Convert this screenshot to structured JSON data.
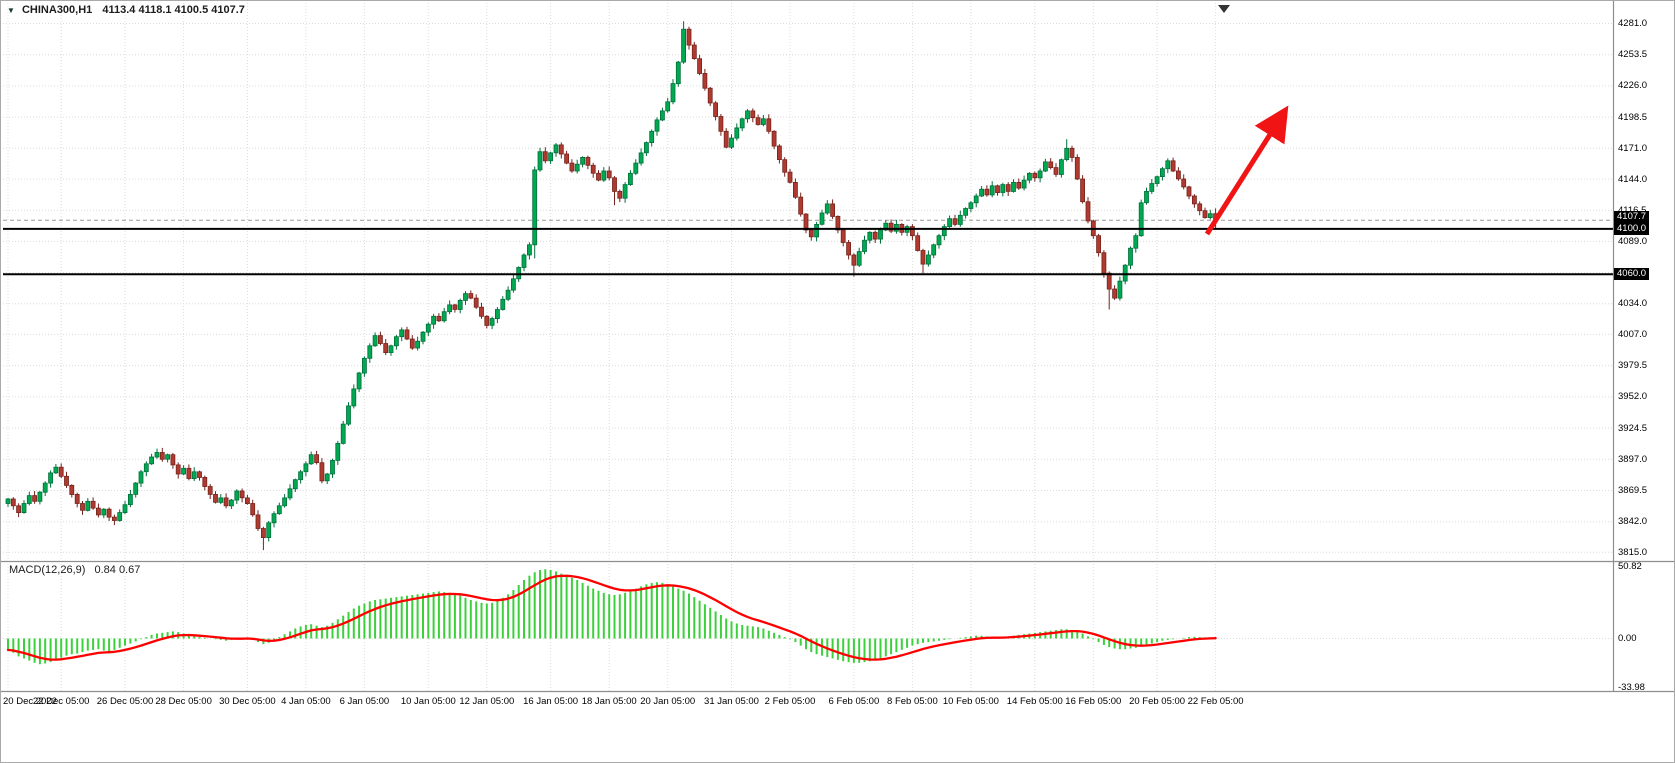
{
  "header": {
    "symbol_info": "CHINA300,H1",
    "ohlc_info": "4113.4 4118.1 4100.5 4107.7"
  },
  "macd_panel": {
    "label": "MACD(12,26,9)",
    "values": "0.84 0.67",
    "axis_labels": [
      {
        "text": "50.82",
        "value": 50.82
      },
      {
        "text": "0.00",
        "value": 0
      },
      {
        "text": "-33.98",
        "value": -33.98
      }
    ]
  },
  "price_scale": {
    "labels": [
      {
        "text": "4281.0",
        "value": 4281.0
      },
      {
        "text": "4253.5",
        "value": 4253.5
      },
      {
        "text": "4226.0",
        "value": 4226.0
      },
      {
        "text": "4198.5",
        "value": 4198.5
      },
      {
        "text": "4171.0",
        "value": 4171.0
      },
      {
        "text": "4144.0",
        "value": 4144.0
      },
      {
        "text": "4116.5",
        "value": 4116.5
      },
      {
        "text": "4089.0",
        "value": 4089.0
      },
      {
        "text": "4034.0",
        "value": 4034.0
      },
      {
        "text": "4007.0",
        "value": 4007.0
      },
      {
        "text": "3979.5",
        "value": 3979.5
      },
      {
        "text": "3952.0",
        "value": 3952.0
      },
      {
        "text": "3924.5",
        "value": 3924.5
      },
      {
        "text": "3897.0",
        "value": 3897.0
      },
      {
        "text": "3869.5",
        "value": 3869.5
      },
      {
        "text": "3842.0",
        "value": 3842.0
      },
      {
        "text": "3815.0",
        "value": 3815.0
      }
    ],
    "hidden_grid_values": [
      4061.5
    ],
    "tags": [
      {
        "text": "4107.7",
        "value": 4107.7,
        "role": "current-price"
      },
      {
        "text": "4100.0",
        "value": 4100.0,
        "role": "hline"
      },
      {
        "text": "4060.0",
        "value": 4060.0,
        "role": "hline"
      }
    ]
  },
  "time_scale": {
    "labels": [
      {
        "text": "20 Dec 2022",
        "index": 0
      },
      {
        "text": "22 Dec 05:00",
        "index": 10
      },
      {
        "text": "26 Dec 05:00",
        "index": 22
      },
      {
        "text": "28 Dec 05:00",
        "index": 33
      },
      {
        "text": "30 Dec 05:00",
        "index": 45
      },
      {
        "text": "4 Jan 05:00",
        "index": 56
      },
      {
        "text": "6 Jan 05:00",
        "index": 67
      },
      {
        "text": "10 Jan 05:00",
        "index": 79
      },
      {
        "text": "12 Jan 05:00",
        "index": 90
      },
      {
        "text": "16 Jan 05:00",
        "index": 102
      },
      {
        "text": "18 Jan 05:00",
        "index": 113
      },
      {
        "text": "20 Jan 05:00",
        "index": 124
      },
      {
        "text": "31 Jan 05:00",
        "index": 136
      },
      {
        "text": "2 Feb 05:00",
        "index": 147
      },
      {
        "text": "6 Feb 05:00",
        "index": 159
      },
      {
        "text": "8 Feb 05:00",
        "index": 170
      },
      {
        "text": "10 Feb 05:00",
        "index": 181
      },
      {
        "text": "14 Feb 05:00",
        "index": 193
      },
      {
        "text": "16 Feb 05:00",
        "index": 204
      },
      {
        "text": "20 Feb 05:00",
        "index": 216
      },
      {
        "text": "22 Feb 05:00",
        "index": 227
      }
    ]
  },
  "chart_data": {
    "type": "candlestick",
    "title": "CHINA300,H1",
    "symbol": "CHINA300",
    "timeframe": "H1",
    "current_quote": {
      "open": 4113.4,
      "high": 4118.1,
      "low": 4100.5,
      "close": 4107.7
    },
    "ylim": [
      3810,
      4292
    ],
    "grid": true,
    "first_open": 3858,
    "closes": [
      3862,
      3856,
      3850,
      3858,
      3865,
      3860,
      3868,
      3876,
      3885,
      3890,
      3882,
      3874,
      3866,
      3858,
      3852,
      3860,
      3854,
      3848,
      3853,
      3846,
      3843,
      3850,
      3857,
      3866,
      3876,
      3886,
      3893,
      3899,
      3903,
      3897,
      3901,
      3892,
      3884,
      3889,
      3880,
      3886,
      3881,
      3873,
      3866,
      3859,
      3863,
      3856,
      3861,
      3869,
      3863,
      3858,
      3848,
      3836,
      3828,
      3841,
      3849,
      3856,
      3863,
      3871,
      3879,
      3886,
      3893,
      3901,
      3894,
      3878,
      3884,
      3896,
      3911,
      3928,
      3944,
      3959,
      3973,
      3986,
      3997,
      4006,
      3999,
      3991,
      3997,
      4005,
      4011,
      4003,
      3995,
      4001,
      4009,
      4016,
      4023,
      4019,
      4027,
      4033,
      4029,
      4037,
      4043,
      4039,
      4031,
      4023,
      4015,
      4021,
      4029,
      4038,
      4046,
      4056,
      4066,
      4077,
      4086,
      4152,
      4168,
      4160,
      4167,
      4174,
      4166,
      4158,
      4151,
      4157,
      4163,
      4156,
      4149,
      4143,
      4151,
      4145,
      4133,
      4127,
      4139,
      4149,
      4158,
      4167,
      4176,
      4186,
      4196,
      4204,
      4212,
      4228,
      4247,
      4276,
      4262,
      4250,
      4237,
      4224,
      4211,
      4199,
      4186,
      4172,
      4180,
      4189,
      4197,
      4204,
      4198,
      4192,
      4197,
      4186,
      4173,
      4161,
      4150,
      4141,
      4128,
      4113,
      4099,
      4093,
      4104,
      4114,
      4122,
      4111,
      4099,
      4088,
      4077,
      4068,
      4080,
      4090,
      4097,
      4091,
      4099,
      4105,
      4098,
      4104,
      4097,
      4102,
      4094,
      4081,
      4069,
      4077,
      4086,
      4094,
      4102,
      4109,
      4104,
      4112,
      4118,
      4123,
      4129,
      4135,
      4130,
      4138,
      4132,
      4139,
      4133,
      4141,
      4136,
      4143,
      4149,
      4145,
      4151,
      4159,
      4154,
      4148,
      4161,
      4171,
      4163,
      4144,
      4124,
      4107,
      4094,
      4079,
      4061,
      4047,
      4039,
      4054,
      4068,
      4083,
      4094,
      4123,
      4133,
      4140,
      4146,
      4153,
      4160,
      4151,
      4144,
      4137,
      4129,
      4122,
      4116,
      4110,
      4113.4,
      4107.7
    ],
    "wick_overrides": {
      "48": [
        1.5,
        11
      ],
      "99": [
        3,
        12
      ],
      "114": [
        1.5,
        12
      ],
      "127": [
        7,
        1.5
      ],
      "159": [
        1.5,
        10
      ],
      "172": [
        1.5,
        8
      ],
      "199": [
        8,
        1.5
      ],
      "207": [
        1.5,
        18
      ],
      "227": [
        4.7,
        7.2
      ]
    },
    "hlines": [
      4100.0,
      4060.0
    ],
    "bid_line": 4107.7,
    "annotation": "thick red arrow pointing up-right in the empty right-shift area",
    "macd": {
      "type": "bar",
      "name": "MACD(12,26,9)",
      "macd_value": 0.84,
      "signal_value": 0.67,
      "ylim": [
        -33.98,
        50.82
      ],
      "signal_ema_period": 9,
      "hist": [
        -8,
        -10,
        -12.5,
        -14,
        -15.5,
        -17,
        -18,
        -17.5,
        -16.5,
        -15,
        -13.5,
        -12,
        -11,
        -10.5,
        -9.5,
        -8.5,
        -8,
        -7.5,
        -8.5,
        -9,
        -8,
        -6.5,
        -5,
        -3.5,
        -2,
        -0.5,
        1,
        2.5,
        3.5,
        4,
        4.5,
        5,
        4.5,
        3.5,
        2.5,
        1.5,
        1,
        0.5,
        0,
        -0.5,
        -1,
        -1.5,
        -1,
        -0.5,
        0,
        0.5,
        -1,
        -2.5,
        -4,
        -3,
        -1,
        1,
        3,
        5,
        7,
        8.5,
        9.5,
        10,
        9,
        8,
        9,
        11,
        13.5,
        16,
        18.5,
        21,
        23,
        24.5,
        26,
        27,
        27.5,
        28,
        28.5,
        29,
        29.5,
        30,
        30.5,
        31,
        31.5,
        32,
        32.5,
        33,
        32.5,
        32,
        31,
        30,
        28.5,
        27,
        26,
        25,
        24.5,
        25,
        26.5,
        28.5,
        31,
        34,
        37.5,
        41,
        44,
        46.5,
        48,
        48.5,
        48,
        47,
        45.5,
        44,
        42.5,
        41,
        39,
        37,
        35,
        33.5,
        32,
        31,
        30.5,
        31,
        32,
        33.5,
        35,
        36.5,
        38,
        39,
        39.5,
        39,
        38,
        36.5,
        35,
        33.5,
        31.5,
        29,
        26.5,
        24,
        21.5,
        19,
        16.5,
        14,
        12,
        10.5,
        9.5,
        9,
        8.5,
        8,
        7,
        5.5,
        4,
        2.5,
        1,
        -0.5,
        -2.5,
        -5,
        -7.5,
        -9.5,
        -11,
        -12,
        -13,
        -14,
        -15,
        -16,
        -16.5,
        -17,
        -17,
        -16.5,
        -16,
        -15,
        -14,
        -12.5,
        -11,
        -9.5,
        -8,
        -6.5,
        -5,
        -4,
        -3,
        -2.5,
        -2,
        -1.5,
        -1,
        -0.5,
        0,
        0.5,
        1,
        1.5,
        2,
        2,
        1.5,
        1,
        0.5,
        1,
        1.5,
        2,
        2.5,
        3,
        3.5,
        4,
        4.5,
        5,
        5.5,
        6,
        6.5,
        6.5,
        6,
        5,
        3.5,
        1.5,
        -0.5,
        -2.5,
        -4.5,
        -6,
        -7,
        -7.5,
        -7.5,
        -7,
        -6.5,
        -5.5,
        -4.5,
        -3.5,
        -2.5,
        -1.5,
        -1,
        -0.5,
        0,
        0.5,
        1,
        1.2,
        1,
        0.8,
        0.8,
        0.84
      ]
    }
  },
  "colors": {
    "background": "#ffffff",
    "grid": "#dcdcdc",
    "bull": "#00a851",
    "bull_border": "#00703a",
    "bear": "#b03a30",
    "bear_border": "#74231c",
    "hline": "#000000",
    "bid_line": "#9a9a9a",
    "macd_hist": "#3cd03c",
    "macd_signal": "#ff0000",
    "arrow": "#f01414",
    "separator": "#8e8e8e",
    "tag_bg": "#000000",
    "tag_text": "#ffffff",
    "shift_marker": "#333333"
  }
}
